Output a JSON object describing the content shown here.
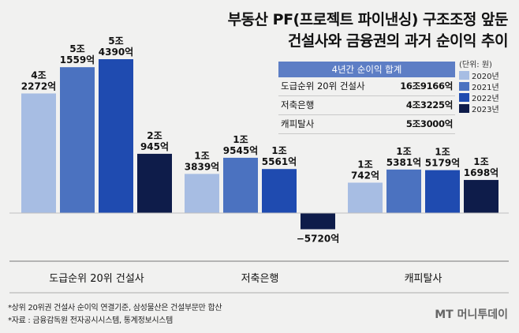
{
  "title_line1": "부동산 PF(프로젝트 파이낸싱) 구조조정 앞둔",
  "title_line2": "건설사와 금융권의 과거 순이익 추이",
  "unit": "(단위: 원)",
  "summary": {
    "header": "4년간 순이익 합계",
    "rows": [
      {
        "name": "도급순위 20위 건설사",
        "value": "16조9166억"
      },
      {
        "name": "저축은행",
        "value": "4조3225억"
      },
      {
        "name": "캐피탈사",
        "value": "5조3000억"
      }
    ]
  },
  "footnotes": {
    "note1": "*상위 20위권 건설사 순이익 연결기준, 삼성물산은 건설부문만 합산",
    "note2": "*자료 : 금융감독원 전자공시시스템, 통계정보시스템"
  },
  "logo": "MT 머니투데이",
  "chart_data": {
    "type": "bar",
    "categories": [
      "도급순위 20위 건설사",
      "저축은행",
      "캐피탈사"
    ],
    "unit": "억원",
    "series": [
      {
        "name": "2020년",
        "color": "#a7bde3",
        "values": [
          42272,
          13839,
          10742
        ],
        "labels": [
          [
            "4조",
            "2272억"
          ],
          [
            "1조",
            "3839억"
          ],
          [
            "1조",
            "742억"
          ]
        ]
      },
      {
        "name": "2021년",
        "color": "#4b72c0",
        "values": [
          51559,
          19545,
          15381
        ],
        "labels": [
          [
            "5조",
            "1559억"
          ],
          [
            "1조",
            "9545억"
          ],
          [
            "1조",
            "5381억"
          ]
        ]
      },
      {
        "name": "2022년",
        "color": "#1f4bb0",
        "values": [
          54390,
          15561,
          15179
        ],
        "labels": [
          [
            "5조",
            "4390억"
          ],
          [
            "1조",
            "5561억"
          ],
          [
            "1조",
            "5179억"
          ]
        ]
      },
      {
        "name": "2023년",
        "color": "#0e1c4a",
        "values": [
          20945,
          -5720,
          11698
        ],
        "labels": [
          [
            "2조",
            "945억"
          ],
          [
            "",
            "−5720억"
          ],
          [
            "1조",
            "1698억"
          ]
        ]
      }
    ]
  }
}
